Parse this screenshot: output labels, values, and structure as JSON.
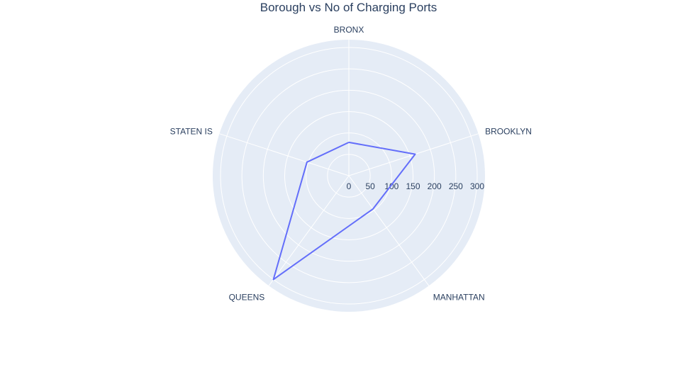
{
  "chart_data": {
    "type": "radar",
    "title": "Borough vs No of Charging Ports",
    "categories": [
      "BRONX",
      "BROOKLYN",
      "MANHATTAN",
      "QUEENS",
      "STATEN IS"
    ],
    "series": [
      {
        "values": [
          78,
          163,
          96,
          300,
          103
        ]
      }
    ],
    "radial_range": [
      0,
      300
    ],
    "radial_ticks": [
      0,
      50,
      100,
      150,
      200,
      250,
      300
    ],
    "line_color": "#636efa",
    "bg_color": "#e5ecf6",
    "grid_color": "#ffffff",
    "grid": true,
    "legend": "none"
  }
}
